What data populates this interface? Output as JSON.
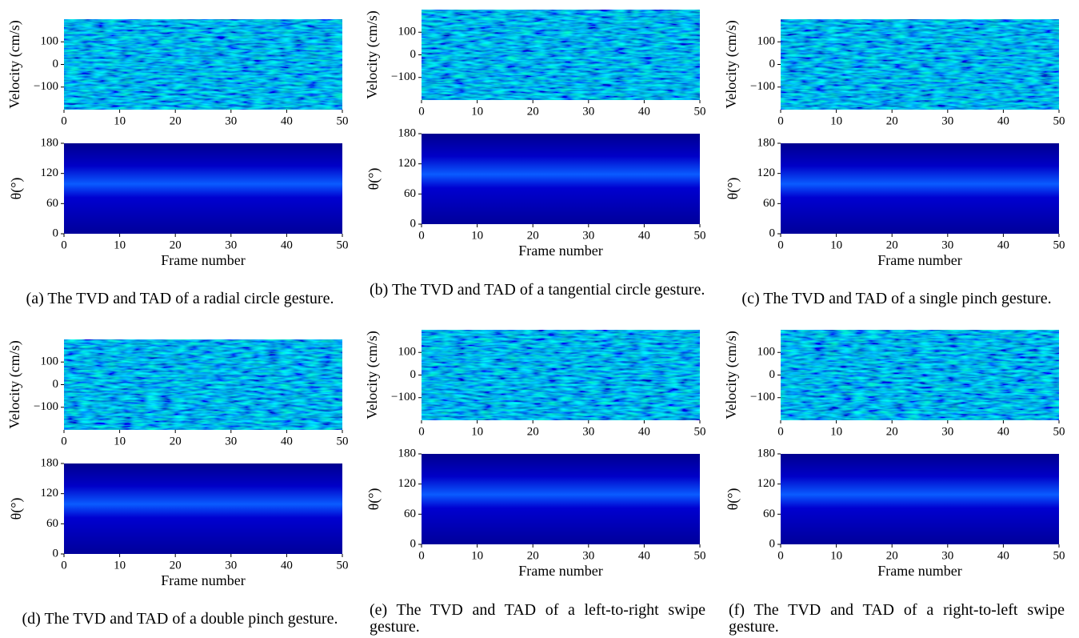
{
  "panels": [
    {
      "caption": "(a) The TVD and TAD of a radial circle gesture.",
      "tvd": {
        "ylabel": "Velocity (cm/s)",
        "xlim": [
          0,
          50
        ],
        "xticks": [
          0,
          10,
          20,
          30,
          40,
          50
        ],
        "ylim": [
          -200,
          200
        ],
        "yticks": [
          {
            "value": -100,
            "label": "−100"
          },
          0,
          100
        ]
      },
      "tad": {
        "ylabel": "θ(°)",
        "xlabel": "Frame number",
        "xlim": [
          0,
          50
        ],
        "xticks": [
          0,
          10,
          20,
          30,
          40,
          50
        ],
        "ylim": [
          0,
          180
        ],
        "yticks": [
          0,
          60,
          120,
          180
        ]
      }
    },
    {
      "caption": "(b) The TVD and TAD of a tangential circle gesture.",
      "tvd": {
        "ylabel": "Velocity (cm/s)",
        "xlim": [
          0,
          50
        ],
        "xticks": [
          0,
          10,
          20,
          30,
          40,
          50
        ],
        "ylim": [
          -200,
          200
        ],
        "yticks": [
          {
            "value": -100,
            "label": "−100"
          },
          0,
          100
        ]
      },
      "tad": {
        "ylabel": "θ(°)",
        "xlabel": "Frame number",
        "xlim": [
          0,
          50
        ],
        "xticks": [
          0,
          10,
          20,
          30,
          40,
          50
        ],
        "ylim": [
          0,
          180
        ],
        "yticks": [
          0,
          60,
          120,
          180
        ]
      }
    },
    {
      "caption": "(c) The TVD and TAD of a single pinch gesture.",
      "tvd": {
        "ylabel": "Velocity (cm/s)",
        "xlim": [
          0,
          50
        ],
        "xticks": [
          0,
          10,
          20,
          30,
          40,
          50
        ],
        "ylim": [
          -200,
          200
        ],
        "yticks": [
          {
            "value": -100,
            "label": "−100"
          },
          0,
          100
        ]
      },
      "tad": {
        "ylabel": "θ(°)",
        "xlabel": "Frame number",
        "xlim": [
          0,
          50
        ],
        "xticks": [
          0,
          10,
          20,
          30,
          40,
          50
        ],
        "ylim": [
          0,
          180
        ],
        "yticks": [
          0,
          60,
          120,
          180
        ]
      }
    },
    {
      "caption": "(d) The TVD and TAD of a double pinch gesture.",
      "tvd": {
        "ylabel": "Velocity (cm/s)",
        "xlim": [
          0,
          50
        ],
        "xticks": [
          0,
          10,
          20,
          30,
          40,
          50
        ],
        "ylim": [
          -200,
          200
        ],
        "yticks": [
          {
            "value": -100,
            "label": "−100"
          },
          0,
          100
        ]
      },
      "tad": {
        "ylabel": "θ(°)",
        "xlabel": "Frame number",
        "xlim": [
          0,
          50
        ],
        "xticks": [
          0,
          10,
          20,
          30,
          40,
          50
        ],
        "ylim": [
          0,
          180
        ],
        "yticks": [
          0,
          60,
          120,
          180
        ]
      }
    },
    {
      "caption": "(e) The TVD and TAD of a left-to-right swipe gesture.",
      "tvd": {
        "ylabel": "Velocity (cm/s)",
        "xlim": [
          0,
          50
        ],
        "xticks": [
          0,
          10,
          20,
          30,
          40,
          50
        ],
        "ylim": [
          -200,
          200
        ],
        "yticks": [
          {
            "value": -100,
            "label": "−100"
          },
          0,
          100
        ]
      },
      "tad": {
        "ylabel": "θ(°)",
        "xlabel": "Frame number",
        "xlim": [
          0,
          50
        ],
        "xticks": [
          0,
          10,
          20,
          30,
          40,
          50
        ],
        "ylim": [
          0,
          180
        ],
        "yticks": [
          0,
          60,
          120,
          180
        ]
      }
    },
    {
      "caption": "(f) The TVD and TAD of a right-to-left swipe gesture.",
      "tvd": {
        "ylabel": "Velocity (cm/s)",
        "xlim": [
          0,
          50
        ],
        "xticks": [
          0,
          10,
          20,
          30,
          40,
          50
        ],
        "ylim": [
          -200,
          200
        ],
        "yticks": [
          {
            "value": -100,
            "label": "−100"
          },
          0,
          100
        ]
      },
      "tad": {
        "ylabel": "θ(°)",
        "xlabel": "Frame number",
        "xlim": [
          0,
          50
        ],
        "xticks": [
          0,
          10,
          20,
          30,
          40,
          50
        ],
        "ylim": [
          0,
          180
        ],
        "yticks": [
          0,
          60,
          120,
          180
        ]
      }
    }
  ]
}
